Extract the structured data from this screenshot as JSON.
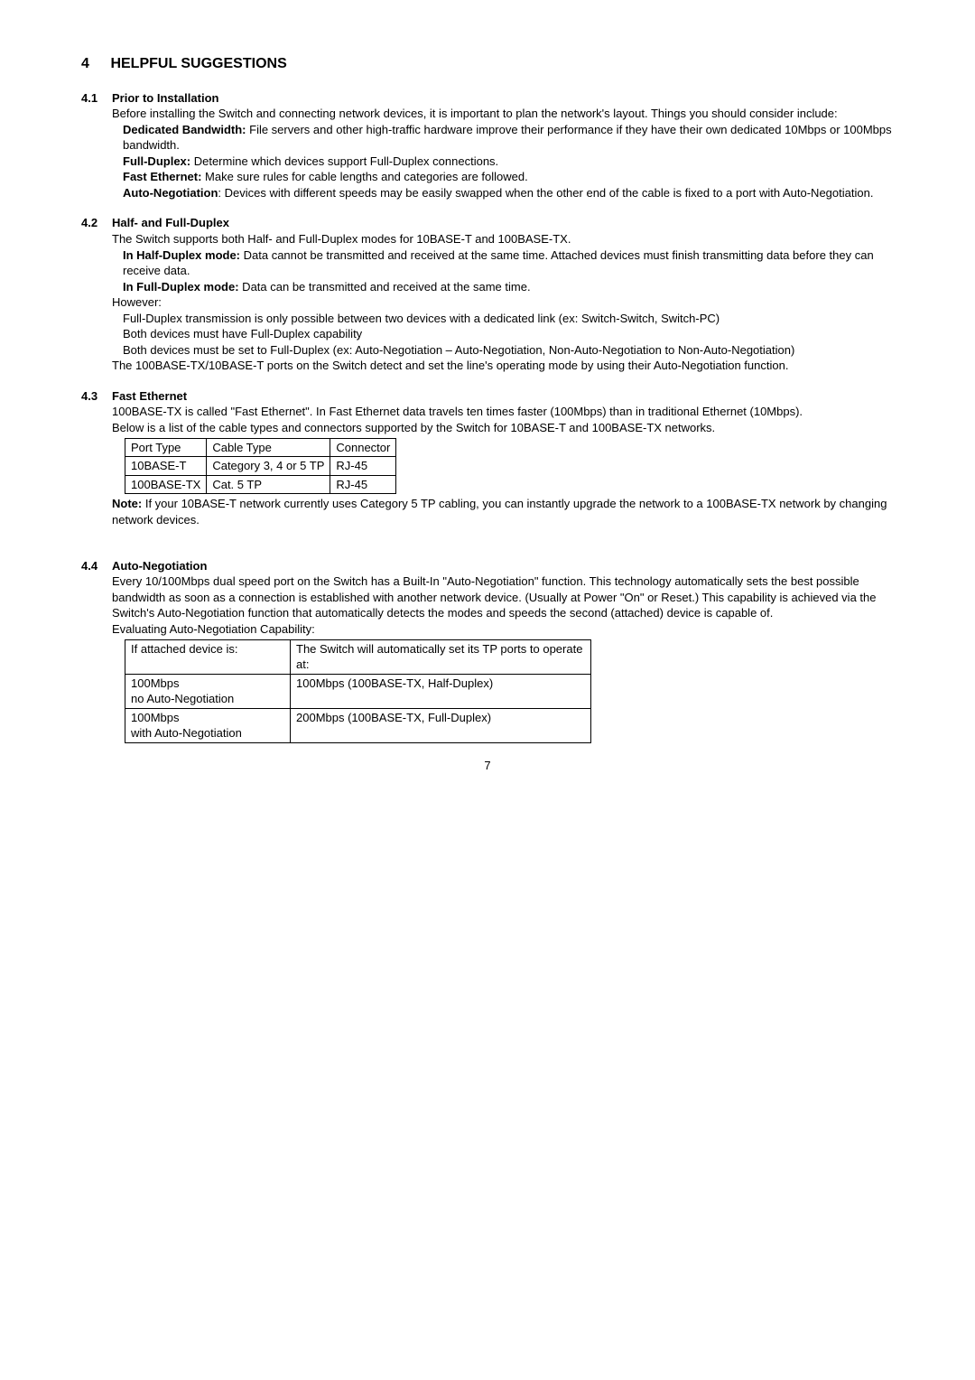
{
  "heading": {
    "num": "4",
    "title": "HELPFUL SUGGESTIONS"
  },
  "s41": {
    "num": "4.1",
    "title": "Prior to Installation",
    "intro": "Before installing the Switch and connecting network devices, it is important to plan the network's layout. Things you should consider include:",
    "items": [
      {
        "label": "Dedicated Bandwidth:",
        "text": " File servers and other high-traffic hardware improve their performance if they have their own dedicated 10Mbps or 100Mbps bandwidth."
      },
      {
        "label": "Full-Duplex:",
        "text": " Determine which devices support Full-Duplex connections."
      },
      {
        "label": "Fast Ethernet:",
        "text": " Make sure rules for cable lengths and categories are followed."
      },
      {
        "label": "Auto-Negotiation",
        "text": ": Devices with different speeds may be easily swapped   when the other end of the cable is fixed to a port with Auto-Negotiation."
      }
    ]
  },
  "s42": {
    "num": "4.2",
    "title": "Half- and Full-Duplex",
    "line1": "The Switch supports both Half- and Full-Duplex modes for 10BASE-T and 100BASE-TX.",
    "half_label": "In Half-Duplex mode:",
    "half_text": " Data cannot be transmitted and received at the same time. Attached devices must finish transmitting data before they can receive data.",
    "full_label": "In Full-Duplex mode:",
    "full_text": " Data can be transmitted and received at the same time.",
    "however": "However:",
    "b1": "Full-Duplex transmission is only possible between two devices with a dedicated link (ex: Switch-Switch, Switch-PC)",
    "b2": "Both devices must have Full-Duplex capability",
    "b3": "Both devices must be set to Full-Duplex (ex: Auto-Negotiation – Auto-Negotiation, Non-Auto-Negotiation to Non-Auto-Negotiation)",
    "tail": "The 100BASE-TX/10BASE-T ports on the Switch detect and set the line's operating mode by using their Auto-Negotiation function."
  },
  "s43": {
    "num": "4.3",
    "title": "Fast Ethernet",
    "p1": "100BASE-TX is called \"Fast Ethernet\". In Fast Ethernet data travels ten times faster (100Mbps) than in traditional Ethernet (10Mbps).",
    "p2": "Below is a list of the cable types and connectors supported by the Switch for 10BASE-T and 100BASE-TX networks.",
    "table": {
      "r0": {
        "c0": "Port Type",
        "c1": "Cable Type",
        "c2": "Connector"
      },
      "r1": {
        "c0": "10BASE-T",
        "c1": "Category 3, 4 or 5 TP",
        "c2": "RJ-45"
      },
      "r2": {
        "c0": "100BASE-TX",
        "c1": "Cat. 5 TP",
        "c2": "RJ-45"
      }
    },
    "note_label": "Note:",
    "note_text": " If your 10BASE-T network currently uses Category 5 TP cabling, you can instantly upgrade the network to a 100BASE-TX network by changing network devices."
  },
  "s44": {
    "num": "4.4",
    "title": "Auto-Negotiation",
    "p1": "Every 10/100Mbps dual speed port on the Switch has a Built-In \"Auto-Negotiation\" function. This technology automatically sets the best possible bandwidth as soon as a connection is established with another network device. (Usually at Power \"On\" or Reset.) This capability is achieved via the Switch's Auto-Negotiation function that automatically detects the modes and speeds the second (attached) device is capable of.",
    "p2": "Evaluating Auto-Negotiation Capability:",
    "table": {
      "r0": {
        "c0": "If attached device is:",
        "c1": "The Switch will automatically set its TP ports to operate at:"
      },
      "r1": {
        "c0a": "100Mbps",
        "c0b": "no Auto-Negotiation",
        "c1": "100Mbps (100BASE-TX, Half-Duplex)"
      },
      "r2": {
        "c0a": "100Mbps",
        "c0b": "with Auto-Negotiation",
        "c1": "200Mbps (100BASE-TX, Full-Duplex)"
      }
    }
  },
  "page_number": "7"
}
